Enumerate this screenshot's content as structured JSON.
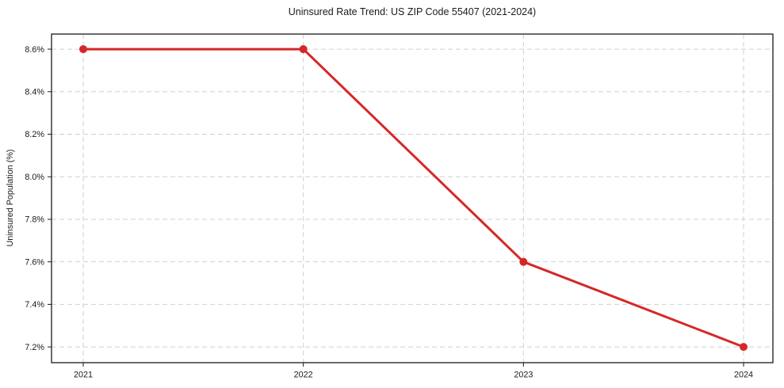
{
  "chart_data": {
    "type": "line",
    "title": "Uninsured Rate Trend: US ZIP Code 55407 (2021-2024)",
    "ylabel": "Uninsured Population (%)",
    "xlabel": "",
    "categories": [
      "2021",
      "2022",
      "2023",
      "2024"
    ],
    "values": [
      8.6,
      8.6,
      7.6,
      7.2
    ],
    "xtick_labels": [
      "2021",
      "2022",
      "2023",
      "2024"
    ],
    "ytick_values": [
      7.2,
      7.4,
      7.6,
      7.8,
      8.0,
      8.2,
      8.4,
      8.6
    ],
    "ytick_labels": [
      "7.2%",
      "7.4%",
      "7.6%",
      "7.8%",
      "8.0%",
      "8.2%",
      "8.4%",
      "8.6%"
    ],
    "ylim": [
      7.126,
      8.671
    ],
    "grid": true,
    "grid_style": "dashed",
    "legend": false,
    "colors": {
      "line": "#d62728",
      "marker": "#d62728",
      "grid": "#cfcfcf",
      "spine": "#1a1a1a",
      "text": "#1a1a1a",
      "background": "#ffffff"
    }
  }
}
